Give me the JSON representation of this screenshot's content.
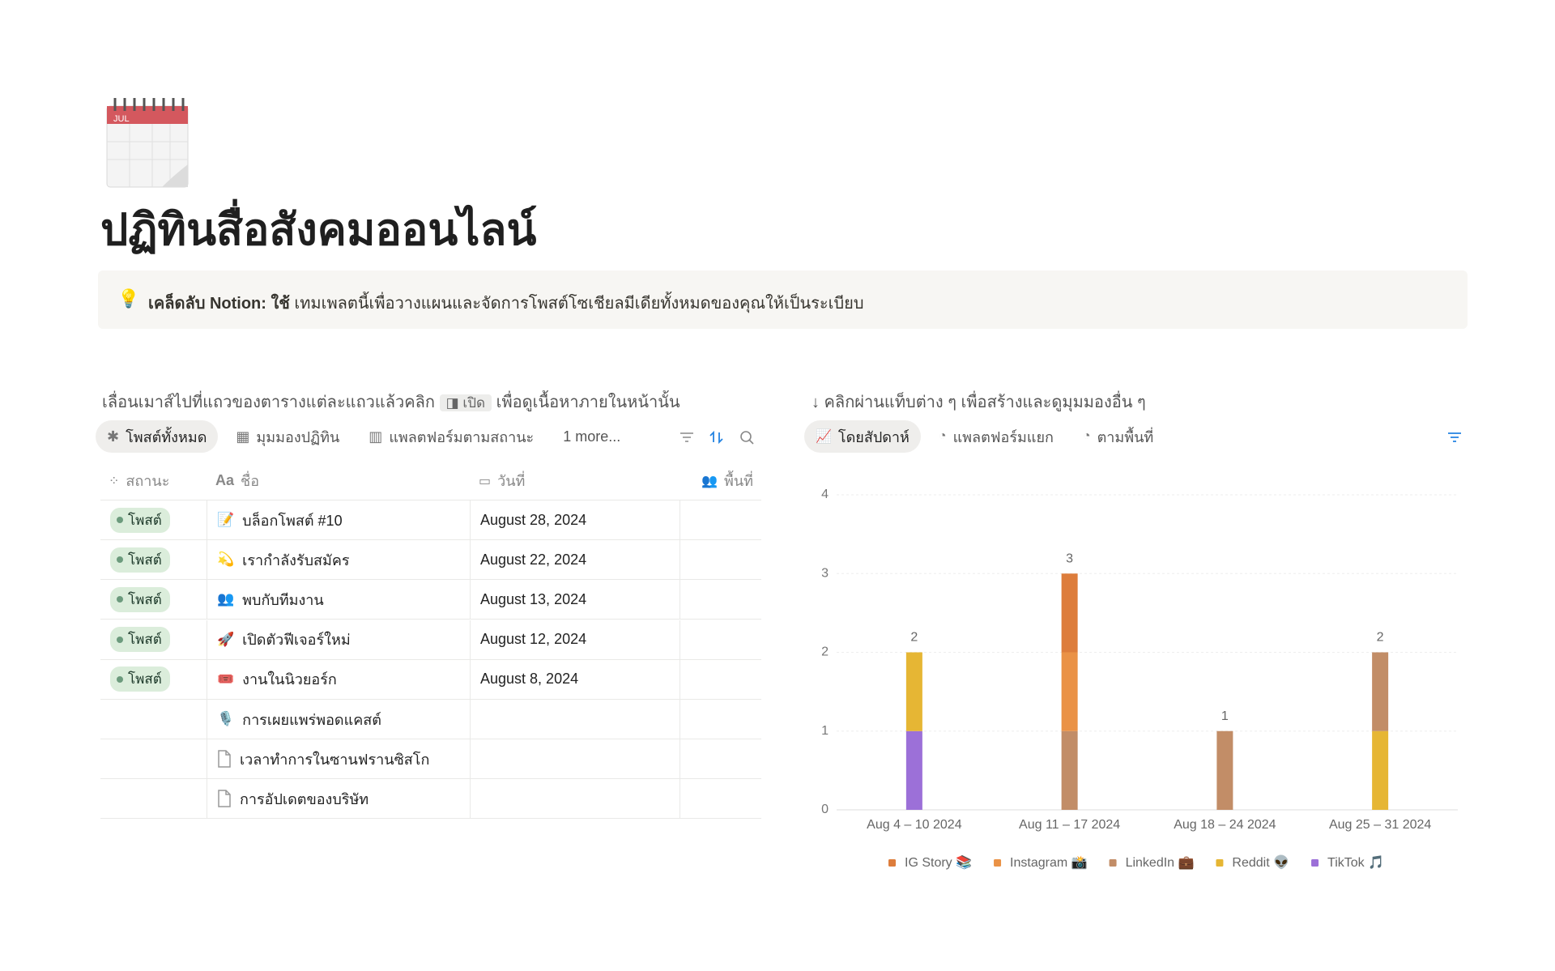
{
  "page": {
    "icon_label": "JUL",
    "title": "ปฏิทินสื่อสังคมออนไลน์",
    "callout": {
      "bold": "เคล็ดลับ Notion: ใช้",
      "text": " เทมเพลตนี้เพื่อวางแผนและจัดการโพสต์โซเชียลมีเดียทั้งหมดของคุณให้เป็นระเบียบ"
    }
  },
  "left": {
    "hint_before": "เลื่อนเมาส์ไปที่แถวของตารางแต่ละแถวแล้วคลิก",
    "hint_chip": "เปิด",
    "hint_after": "เพื่อดูเนื้อหาภายในหน้านั้น",
    "tabs": [
      "โพสต์ทั้งหมด",
      "มุมมองปฏิทิน",
      "แพลตฟอร์มตามสถานะ"
    ],
    "more": "1 more..."
  },
  "table": {
    "name_icon": "Aa",
    "columns": [
      "สถานะ",
      "ชื่อ",
      "วันที่",
      "พื้นที่"
    ],
    "rows": [
      {
        "status": "โพสต์",
        "icon": "📝",
        "name": "บล็อกโพสต์ #10",
        "date": "August 28, 2024"
      },
      {
        "status": "โพสต์",
        "icon": "💫",
        "name": "เรากำลังรับสมัคร",
        "date": "August 22, 2024"
      },
      {
        "status": "โพสต์",
        "icon": "👥",
        "name": "พบกับทีมงาน",
        "date": "August 13, 2024"
      },
      {
        "status": "โพสต์",
        "icon": "🚀",
        "name": "เปิดตัวฟีเจอร์ใหม่",
        "date": "August 12, 2024"
      },
      {
        "status": "โพสต์",
        "icon": "🎟️",
        "name": "งานในนิวยอร์ก",
        "date": "August 8, 2024"
      },
      {
        "icon": "🎙️",
        "name": "การเผยแพร่พอดแคสต์"
      },
      {
        "name": "เวลาทำการในซานฟรานซิสโก"
      },
      {
        "name": "การอัปเดตของบริษัท"
      }
    ]
  },
  "right": {
    "hint": "↓ คลิกผ่านแท็บต่าง ๆ เพื่อสร้างและดูมุมมองอื่น ๆ",
    "tabs": [
      "โดยสัปดาห์",
      "แพลตฟอร์มแยก",
      "ตามพื้นที่"
    ]
  },
  "chart_data": {
    "type": "stacked_bar",
    "categories": [
      "Aug 4 – 10 2024",
      "Aug 11 – 17 2024",
      "Aug 18 – 24 2024",
      "Aug 25 – 31 2024"
    ],
    "series": [
      {
        "name": "IG Story 📚",
        "color": "#dd7d3c",
        "values": [
          0,
          1,
          0,
          0
        ]
      },
      {
        "name": "Instagram 📸",
        "color": "#ea9246",
        "values": [
          0,
          1,
          0,
          0
        ]
      },
      {
        "name": "LinkedIn 💼",
        "color": "#c28d67",
        "values": [
          0,
          1,
          1,
          1
        ]
      },
      {
        "name": "Reddit 👽",
        "color": "#e6b634",
        "values": [
          1,
          0,
          0,
          1
        ]
      },
      {
        "name": "TikTok 🎵",
        "color": "#9c70d8",
        "values": [
          1,
          0,
          0,
          0
        ]
      }
    ],
    "totals": [
      2,
      3,
      1,
      2
    ],
    "ylim": [
      0,
      4
    ],
    "yticks": [
      0,
      1,
      2,
      3,
      4
    ],
    "grid": true,
    "legend": "bottom"
  }
}
